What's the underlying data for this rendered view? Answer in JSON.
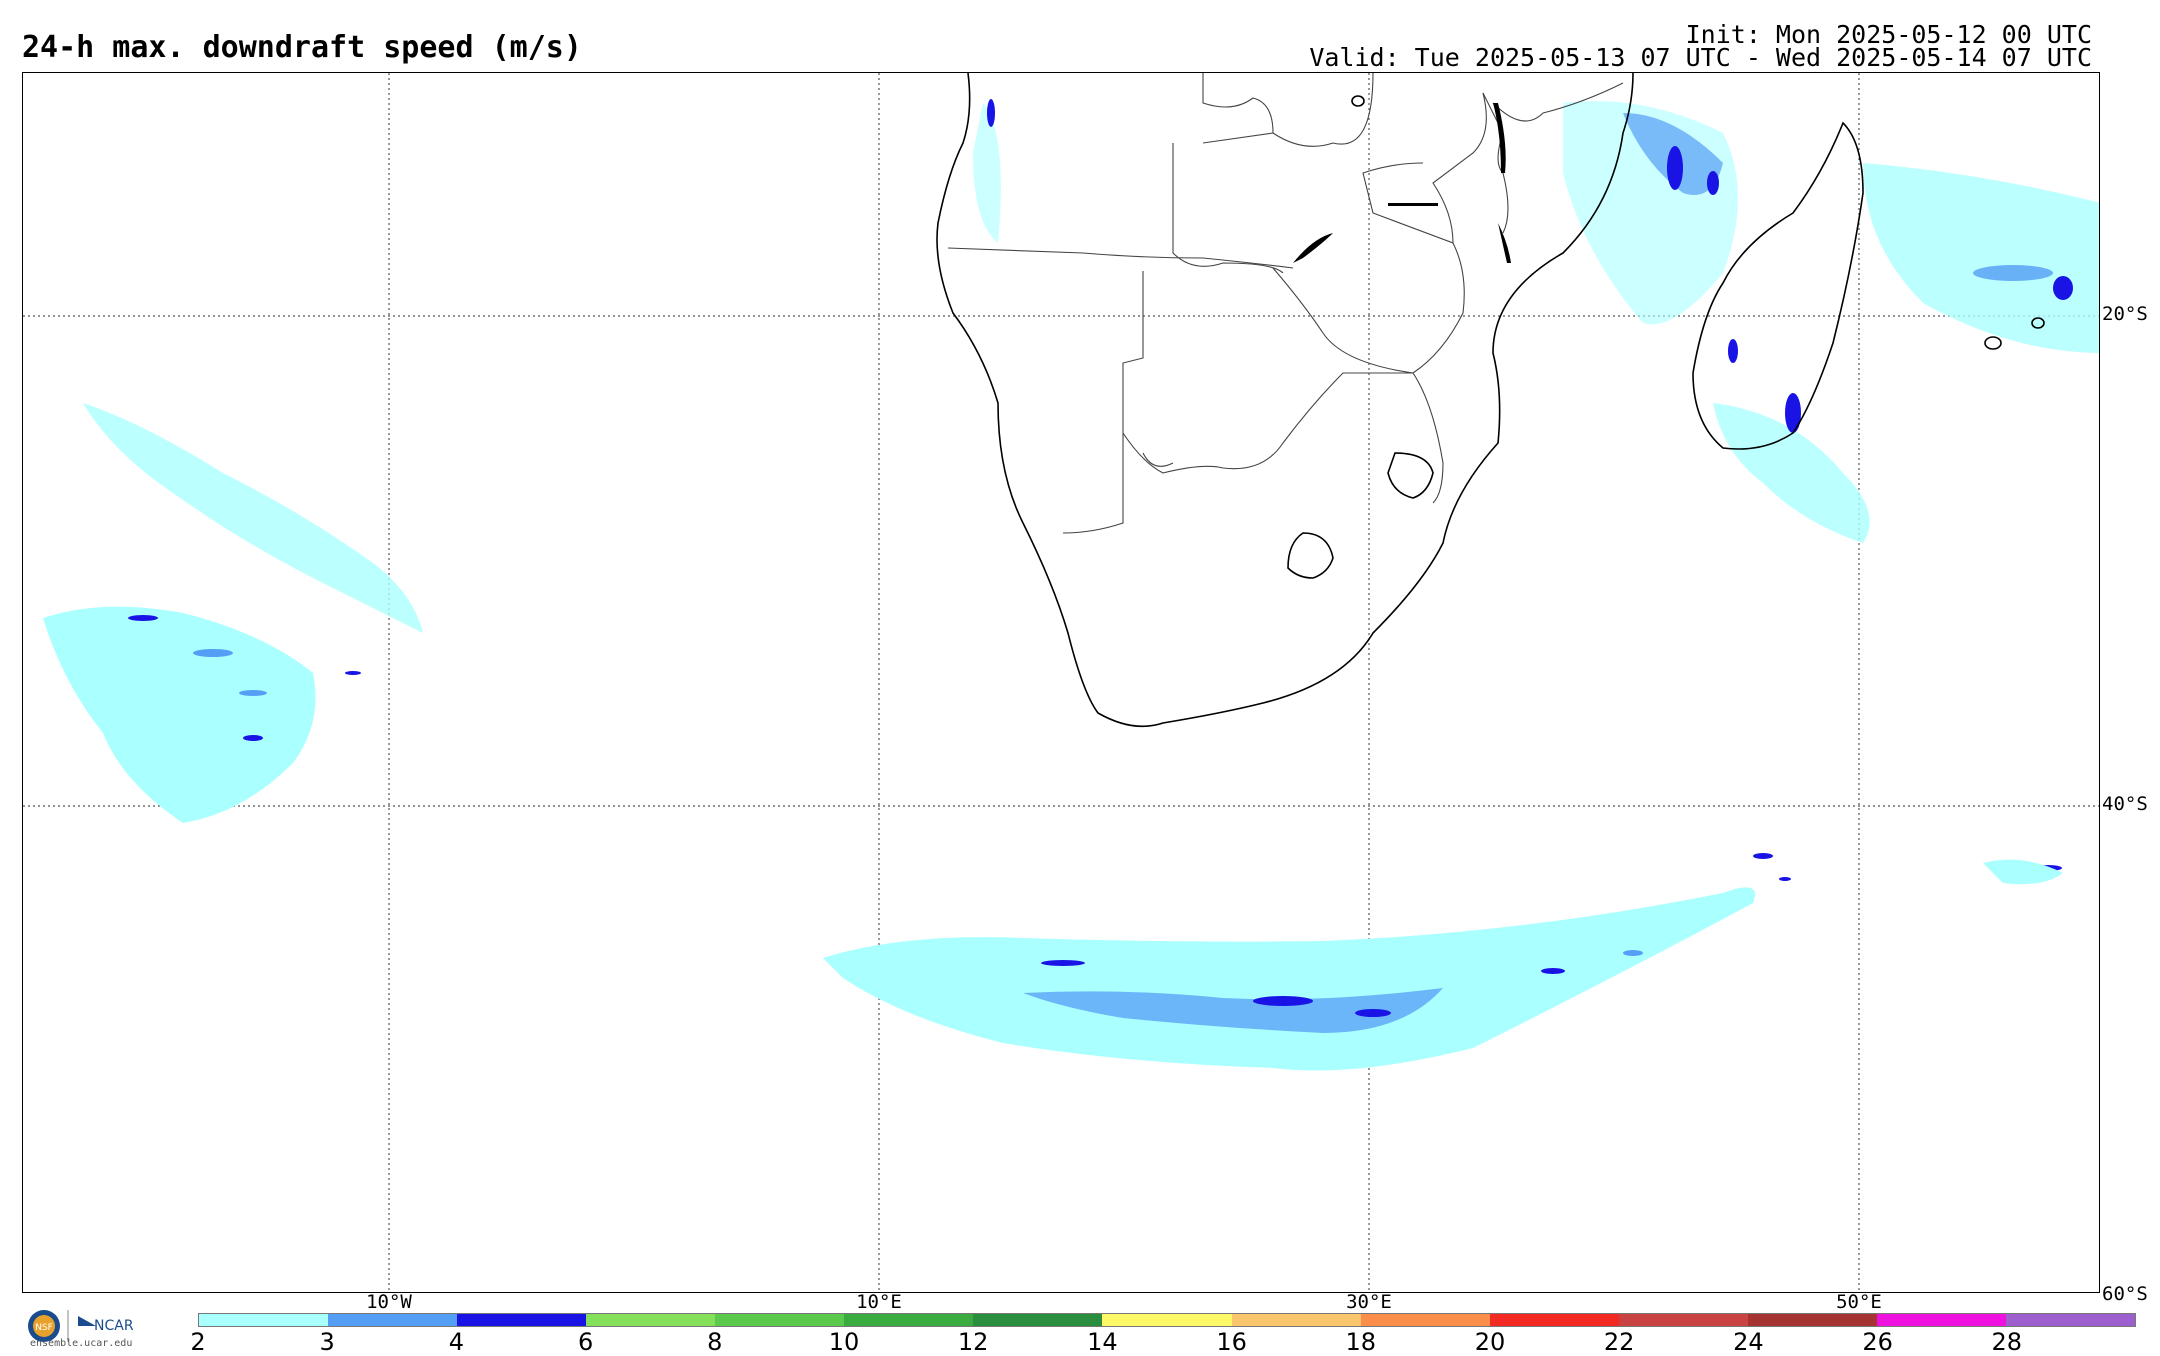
{
  "header": {
    "title": "24-h max. downdraft speed (m/s)",
    "init": "Init: Mon 2025-05-12 00 UTC",
    "valid": "Valid: Tue 2025-05-13 07 UTC - Wed 2025-05-14 07 UTC"
  },
  "map": {
    "lat_labels": [
      "20°S",
      "40°S",
      "60°S"
    ],
    "lon_labels": [
      "10°W",
      "10°E",
      "30°E",
      "50°E"
    ]
  },
  "colorbar": {
    "ticks": [
      "2",
      "3",
      "4",
      "6",
      "8",
      "10",
      "12",
      "14",
      "16",
      "18",
      "20",
      "22",
      "24",
      "26",
      "28"
    ],
    "colors": [
      "#aaffff",
      "#559ef5",
      "#1a13e6",
      "#84e05a",
      "#5ac94c",
      "#3aab3e",
      "#2a8e3e",
      "#fdf866",
      "#fdc56c",
      "#fb8e4b",
      "#f32a24",
      "#c94342",
      "#a43332",
      "#ee11df",
      "#9d5fce"
    ]
  },
  "footer": {
    "site": "ensemble.ucar.edu",
    "logo_nsf": "NSF",
    "logo_ncar": "NCAR"
  }
}
